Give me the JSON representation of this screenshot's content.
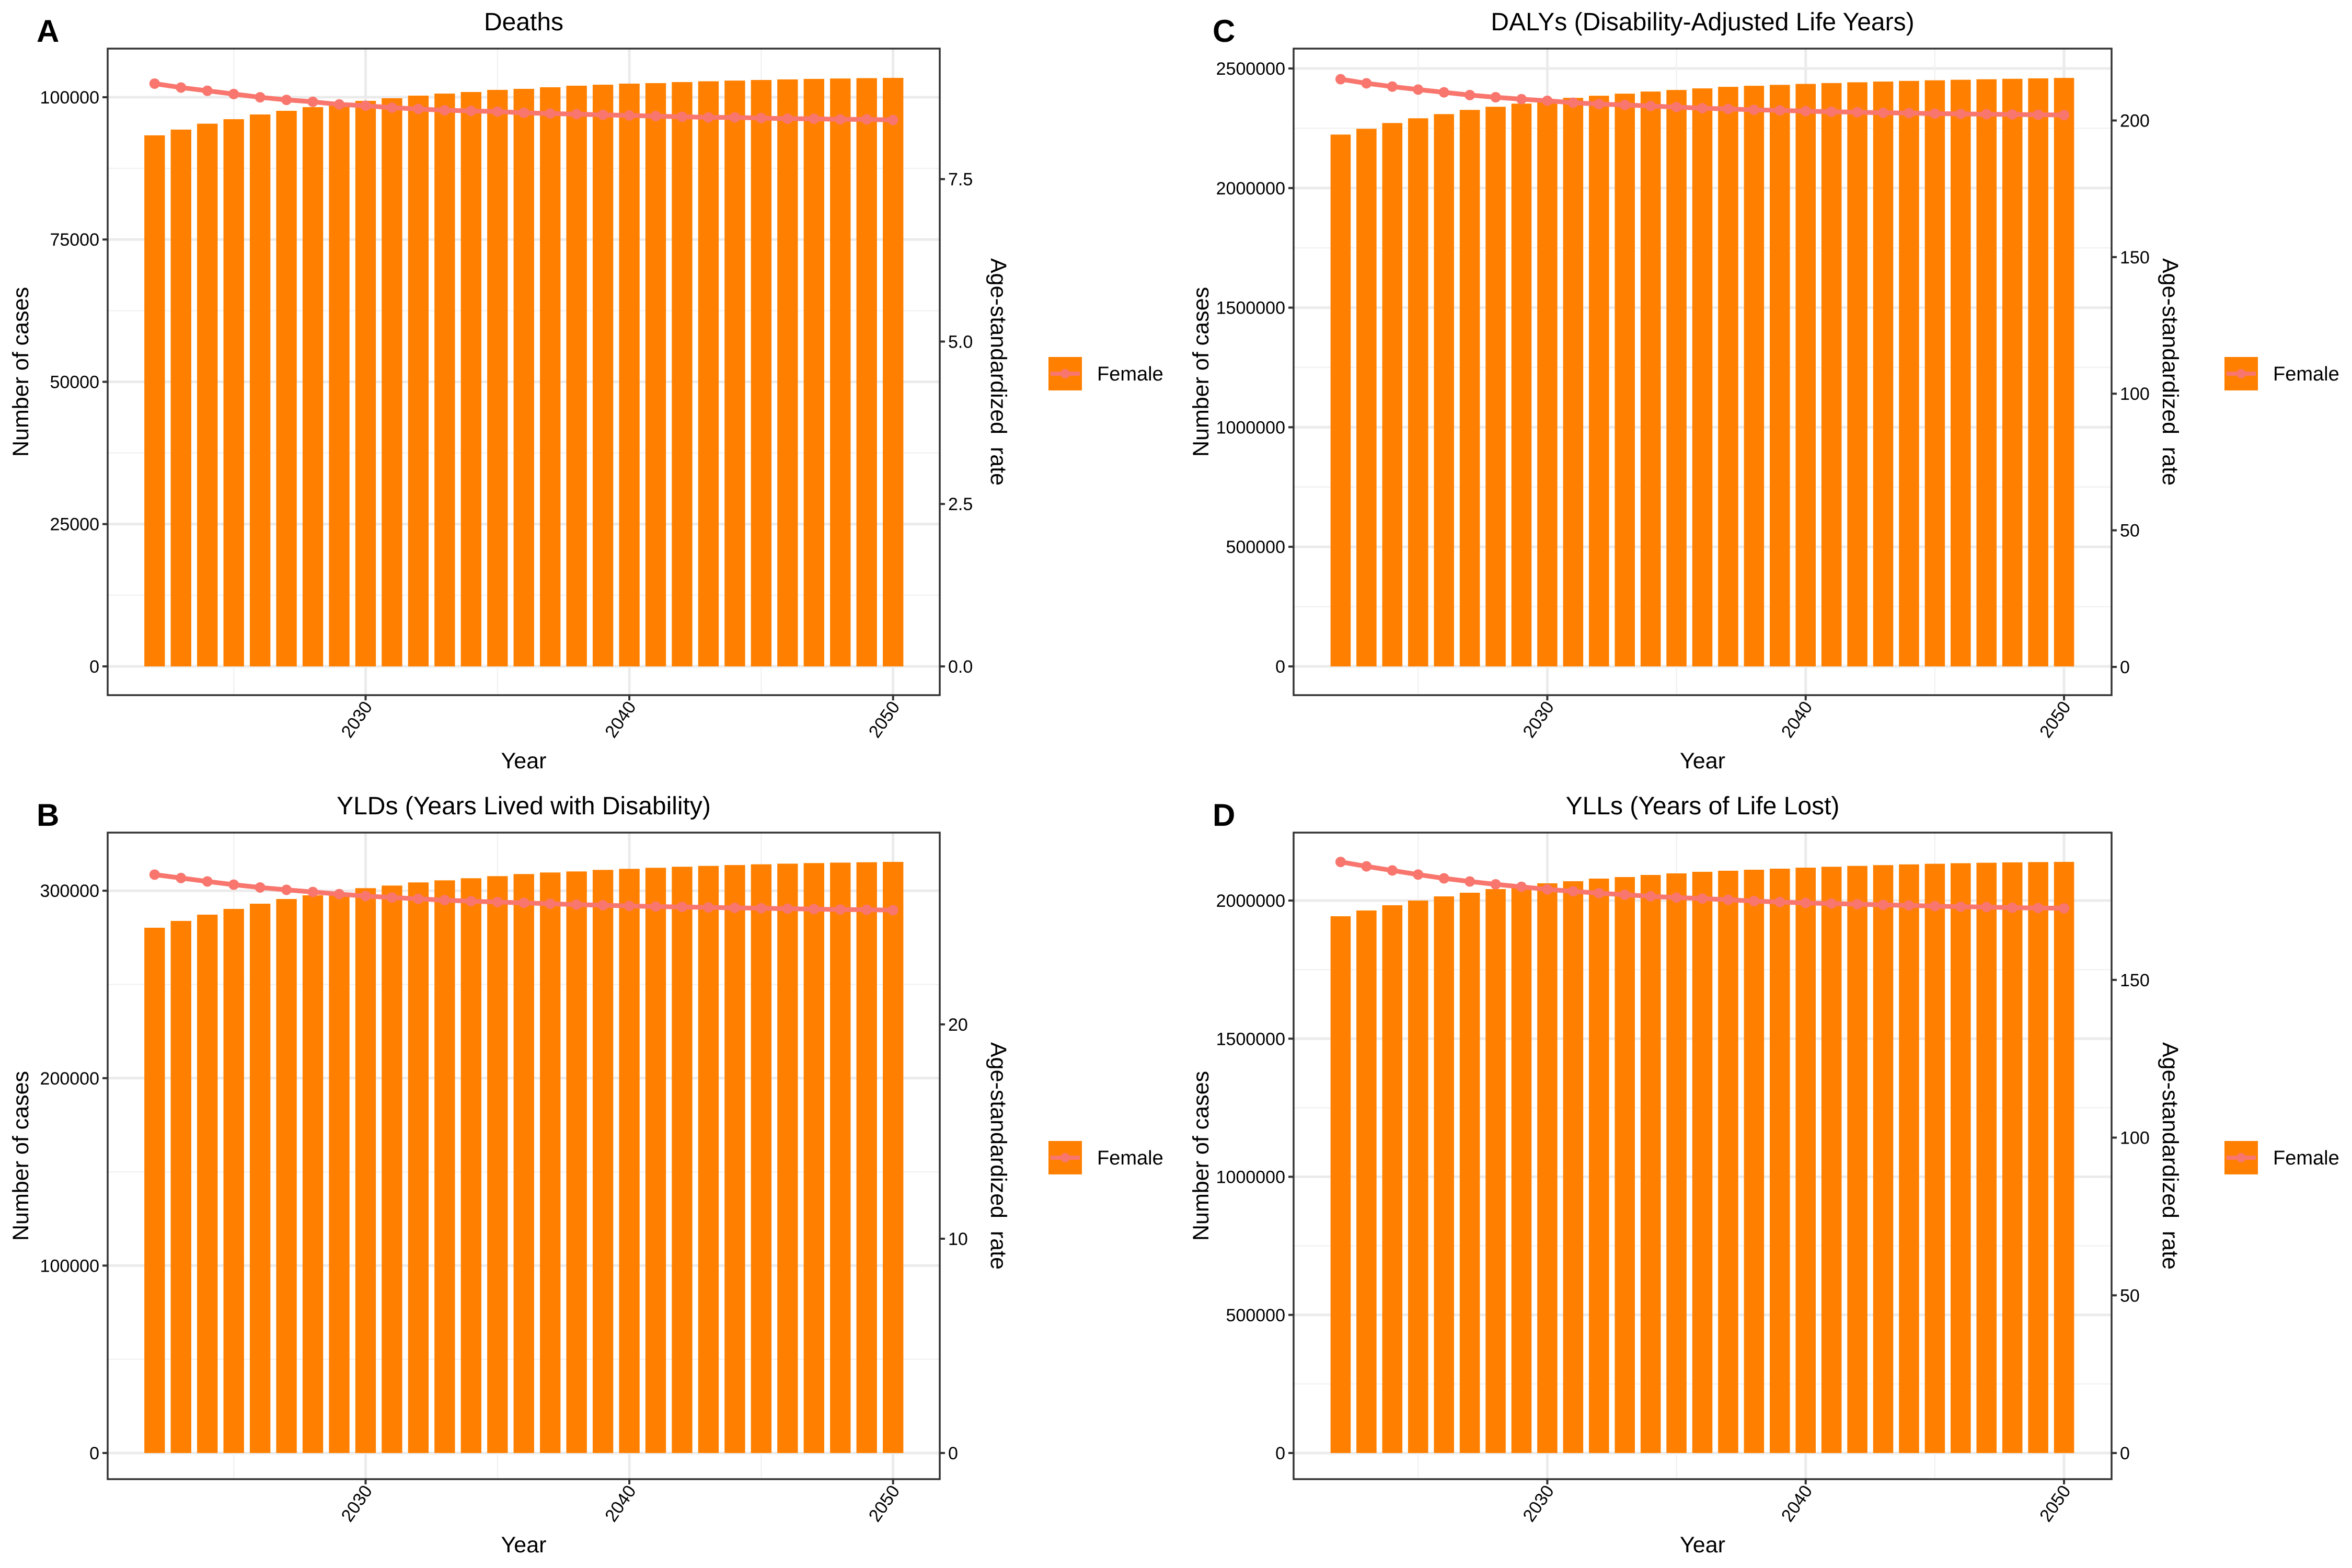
{
  "colors": {
    "bar": "#FF8000",
    "line": "#F8766D",
    "grid_major": "#EBEBEB",
    "grid_minor": "#F2F2F2",
    "panel_border": "#333333",
    "text": "#000000"
  },
  "legend": {
    "label": "Female"
  },
  "chart_data": [
    {
      "id": "A",
      "panel_letter": "A",
      "type": "bar+line",
      "title": "Deaths",
      "xlabel": "Year",
      "ylabel": "Number of cases",
      "ylabel_right": "Age-standardized  rate",
      "x_ticks": [
        "2030",
        "2040",
        "2050"
      ],
      "y_ticks": [
        "0",
        "25000",
        "50000",
        "75000",
        "100000"
      ],
      "y_right_ticks": [
        "0.0",
        "2.5",
        "5.0",
        "7.5"
      ],
      "xlim": [
        2020.22,
        2051.77
      ],
      "ylim": [
        -5051,
        108540
      ],
      "ylim_right": [
        -0.4425,
        9.509
      ],
      "grid": true,
      "legend_position": "right",
      "x": [
        2022,
        2023,
        2024,
        2025,
        2026,
        2027,
        2028,
        2029,
        2030,
        2031,
        2032,
        2033,
        2034,
        2035,
        2036,
        2037,
        2038,
        2039,
        2040,
        2041,
        2042,
        2043,
        2044,
        2045,
        2046,
        2047,
        2048,
        2049,
        2050
      ],
      "series": [
        {
          "name": "Female (number of cases)",
          "kind": "bar",
          "axis": "left",
          "values": [
            93300,
            94310,
            95350,
            96140,
            96970,
            97610,
            98260,
            98710,
            99360,
            99820,
            100280,
            100640,
            100920,
            101290,
            101470,
            101750,
            102020,
            102200,
            102390,
            102480,
            102660,
            102800,
            102920,
            103030,
            103130,
            103220,
            103290,
            103350,
            103400
          ]
        },
        {
          "name": "Female (age-standardized rate)",
          "kind": "line",
          "axis": "right",
          "values": [
            8.97,
            8.91,
            8.86,
            8.81,
            8.76,
            8.72,
            8.69,
            8.65,
            8.63,
            8.6,
            8.58,
            8.56,
            8.55,
            8.54,
            8.52,
            8.51,
            8.5,
            8.49,
            8.48,
            8.47,
            8.46,
            8.45,
            8.45,
            8.44,
            8.43,
            8.43,
            8.42,
            8.42,
            8.41
          ]
        }
      ]
    },
    {
      "id": "C",
      "panel_letter": "C",
      "type": "bar+line",
      "title": "DALYs (Disability-Adjusted Life Years)",
      "xlabel": "Year",
      "ylabel": "Number of cases",
      "ylabel_right": "Age-standardized  rate",
      "x_ticks": [
        "2030",
        "2040",
        "2050"
      ],
      "y_ticks": [
        "0",
        "500000",
        "1000000",
        "1500000",
        "2000000",
        "2500000"
      ],
      "y_right_ticks": [
        "0",
        "50",
        "100",
        "150",
        "200"
      ],
      "xlim": [
        2020.18,
        2051.84
      ],
      "ylim": [
        -120192,
        2583042
      ],
      "ylim_right": [
        -10.33,
        226.3
      ],
      "grid": true,
      "legend_position": "right",
      "x": [
        2022,
        2023,
        2024,
        2025,
        2026,
        2027,
        2028,
        2029,
        2030,
        2031,
        2032,
        2033,
        2034,
        2035,
        2036,
        2037,
        2038,
        2039,
        2040,
        2041,
        2042,
        2043,
        2044,
        2045,
        2046,
        2047,
        2048,
        2049,
        2050
      ],
      "series": [
        {
          "name": "Female (number of cases)",
          "kind": "bar",
          "axis": "left",
          "values": [
            2223700,
            2247800,
            2271900,
            2291700,
            2309200,
            2326800,
            2339900,
            2353100,
            2359600,
            2377200,
            2386000,
            2394700,
            2403500,
            2410100,
            2416700,
            2423200,
            2427600,
            2431500,
            2435500,
            2439000,
            2442300,
            2445300,
            2448000,
            2450500,
            2452800,
            2454900,
            2456800,
            2458700,
            2460500
          ]
        },
        {
          "name": "Female (age-standardized rate)",
          "kind": "line",
          "axis": "right",
          "values": [
            215.1,
            213.6,
            212.4,
            211.3,
            210.3,
            209.3,
            208.5,
            207.8,
            207.2,
            206.5,
            206.0,
            205.7,
            205.3,
            204.9,
            204.5,
            204.2,
            203.9,
            203.7,
            203.4,
            203.2,
            203.0,
            202.8,
            202.7,
            202.5,
            202.4,
            202.3,
            202.2,
            202.1,
            202.0
          ]
        }
      ]
    },
    {
      "id": "B",
      "panel_letter": "B",
      "type": "bar+line",
      "title": "YLDs (Years Lived with Disability)",
      "xlabel": "Year",
      "ylabel": "Number of cases",
      "ylabel_right": "Age-standardized  rate",
      "x_ticks": [
        "2030",
        "2040",
        "2050"
      ],
      "y_ticks": [
        "0",
        "100000",
        "200000",
        "300000"
      ],
      "y_right_ticks": [
        "0",
        "10",
        "20"
      ],
      "xlim": [
        2020.22,
        2051.77
      ],
      "ylim": [
        -13943,
        331010
      ],
      "ylim_right": [
        -1.22,
        28.95
      ],
      "grid": true,
      "legend_position": "right",
      "x": [
        2022,
        2023,
        2024,
        2025,
        2026,
        2027,
        2028,
        2029,
        2030,
        2031,
        2032,
        2033,
        2034,
        2035,
        2036,
        2037,
        2038,
        2039,
        2040,
        2041,
        2042,
        2043,
        2044,
        2045,
        2046,
        2047,
        2048,
        2049,
        2050
      ],
      "series": [
        {
          "name": "Female (number of cases)",
          "kind": "bar",
          "axis": "left",
          "values": [
            280260,
            283880,
            287230,
            290300,
            293080,
            295590,
            297550,
            298860,
            301370,
            302760,
            304430,
            305550,
            306670,
            307780,
            308900,
            309730,
            310290,
            311130,
            311680,
            312240,
            312800,
            313250,
            313700,
            314100,
            314450,
            314750,
            315000,
            315200,
            315390
          ]
        },
        {
          "name": "Female (age-standardized rate)",
          "kind": "line",
          "axis": "right",
          "values": [
            26.99,
            26.83,
            26.67,
            26.52,
            26.39,
            26.28,
            26.18,
            26.08,
            25.99,
            25.92,
            25.86,
            25.8,
            25.75,
            25.71,
            25.67,
            25.63,
            25.59,
            25.56,
            25.53,
            25.5,
            25.48,
            25.46,
            25.44,
            25.42,
            25.4,
            25.38,
            25.36,
            25.35,
            25.33
          ]
        }
      ]
    },
    {
      "id": "D",
      "panel_letter": "D",
      "type": "bar+line",
      "title": "YLLs (Years of Life Lost)",
      "xlabel": "Year",
      "ylabel": "Number of cases",
      "ylabel_right": "Age-standardized  rate",
      "x_ticks": [
        "2030",
        "2040",
        "2050"
      ],
      "y_ticks": [
        "0",
        "500000",
        "1000000",
        "1500000",
        "2000000"
      ],
      "y_right_ticks": [
        "0",
        "50",
        "100",
        "150"
      ],
      "xlim": [
        2020.18,
        2051.84
      ],
      "ylim": [
        -94607,
        2245979
      ],
      "ylim_right": [
        -8.28,
        196.7
      ],
      "grid": true,
      "legend_position": "right",
      "x": [
        2022,
        2023,
        2024,
        2025,
        2026,
        2027,
        2028,
        2029,
        2030,
        2031,
        2032,
        2033,
        2034,
        2035,
        2036,
        2037,
        2038,
        2039,
        2040,
        2041,
        2042,
        2043,
        2044,
        2045,
        2046,
        2047,
        2048,
        2049,
        2050
      ],
      "series": [
        {
          "name": "Female (number of cases)",
          "kind": "bar",
          "axis": "left",
          "values": [
            1943200,
            1964000,
            1983000,
            2000000,
            2015100,
            2028400,
            2041600,
            2053000,
            2062400,
            2070000,
            2079500,
            2085100,
            2092700,
            2098400,
            2104100,
            2107900,
            2111600,
            2115400,
            2119100,
            2122400,
            2125500,
            2128300,
            2130900,
            2133200,
            2135200,
            2136900,
            2138200,
            2139300,
            2140000
          ]
        },
        {
          "name": "Female (age-standardized rate)",
          "kind": "line",
          "axis": "right",
          "values": [
            187.4,
            186.0,
            184.7,
            183.4,
            182.2,
            181.2,
            180.3,
            179.5,
            178.7,
            178.1,
            177.5,
            177.0,
            176.5,
            176.1,
            175.8,
            175.4,
            175.0,
            174.7,
            174.4,
            174.2,
            174.0,
            173.8,
            173.6,
            173.4,
            173.2,
            173.1,
            172.9,
            172.8,
            172.7
          ]
        }
      ]
    }
  ]
}
